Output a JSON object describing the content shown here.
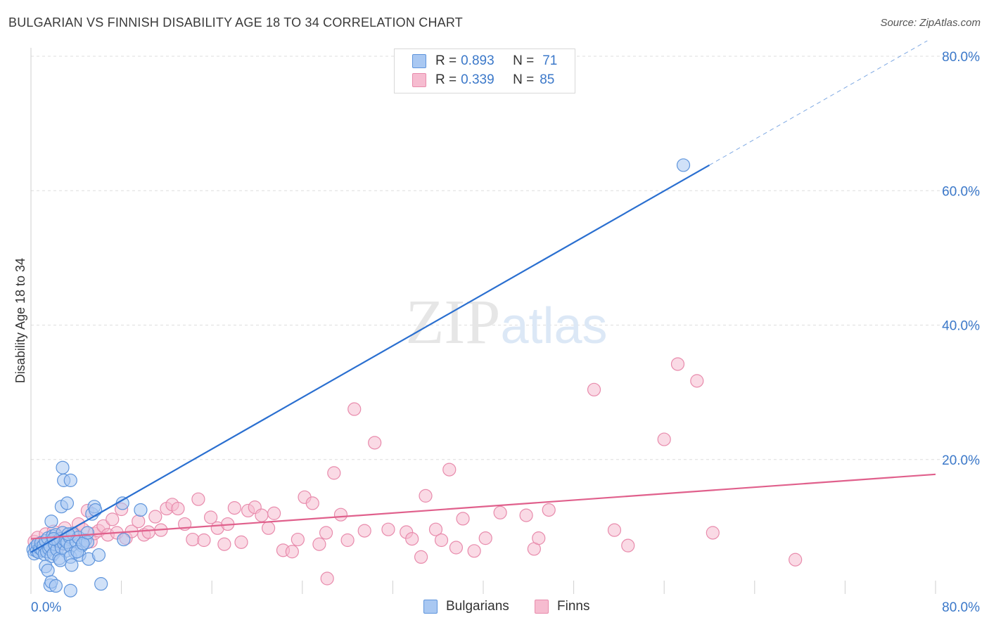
{
  "title": "BULGARIAN VS FINNISH DISABILITY AGE 18 TO 34 CORRELATION CHART",
  "source": "Source: ZipAtlas.com",
  "watermark": "ZIPatlas",
  "colors": {
    "bulgarians_fill": "#a9c8f2",
    "bulgarians_stroke": "#5f95dc",
    "bulgarians_line": "#2a6fd0",
    "finns_fill": "#f6bcd0",
    "finns_stroke": "#e88bac",
    "finns_line": "#e0608c",
    "tick_text": "#3b78c9",
    "grid": "#dedede"
  },
  "legend_top": {
    "bulgarians": {
      "r_label": "R = ",
      "r_value": "0.893",
      "n_label": "N = ",
      "n_value": "71"
    },
    "finns": {
      "r_label": "R = ",
      "r_value": "0.339",
      "n_label": "N = ",
      "n_value": "85"
    }
  },
  "legend_bottom": {
    "bulgarians": "Bulgarians",
    "finns": "Finns"
  },
  "chart_data": {
    "type": "scatter",
    "title": "BULGARIAN VS FINNISH DISABILITY AGE 18 TO 34 CORRELATION CHART",
    "xlabel": "",
    "ylabel": "Disability Age 18 to 34",
    "xlim": [
      0,
      80
    ],
    "ylim": [
      0,
      80
    ],
    "x_tick_labels": [
      "0.0%",
      "80.0%"
    ],
    "y_tick_labels": [
      "20.0%",
      "40.0%",
      "60.0%",
      "80.0%"
    ],
    "y_ticks": [
      20,
      40,
      60,
      80
    ],
    "grid": true,
    "legend_position": "top-center",
    "series": [
      {
        "name": "Bulgarians",
        "r": 0.893,
        "n": 71,
        "trend": {
          "x": [
            0,
            60
          ],
          "y": [
            6.2,
            63.8
          ],
          "dashed_to": [
            80,
            82.3
          ]
        },
        "points": [
          [
            0.2,
            6.6
          ],
          [
            0.3,
            6.0
          ],
          [
            0.4,
            7.0
          ],
          [
            0.5,
            6.4
          ],
          [
            0.6,
            7.4
          ],
          [
            0.7,
            6.2
          ],
          [
            0.8,
            6.8
          ],
          [
            0.9,
            7.6
          ],
          [
            1.0,
            6.5
          ],
          [
            1.1,
            7.2
          ],
          [
            1.2,
            5.9
          ],
          [
            1.3,
            7.9
          ],
          [
            1.4,
            6.3
          ],
          [
            1.5,
            8.3
          ],
          [
            1.6,
            6.7
          ],
          [
            1.7,
            7.1
          ],
          [
            1.8,
            5.6
          ],
          [
            1.9,
            8.6
          ],
          [
            2.0,
            6.0
          ],
          [
            2.1,
            7.4
          ],
          [
            2.2,
            8.8
          ],
          [
            2.3,
            6.6
          ],
          [
            2.4,
            7.9
          ],
          [
            2.5,
            5.3
          ],
          [
            2.6,
            8.2
          ],
          [
            2.7,
            6.9
          ],
          [
            2.8,
            9.1
          ],
          [
            2.9,
            7.5
          ],
          [
            3.0,
            8.0
          ],
          [
            3.1,
            6.4
          ],
          [
            3.2,
            7.7
          ],
          [
            3.4,
            8.5
          ],
          [
            3.5,
            7.1
          ],
          [
            3.7,
            9.0
          ],
          [
            3.9,
            6.2
          ],
          [
            4.0,
            7.8
          ],
          [
            4.2,
            8.4
          ],
          [
            4.5,
            7.2
          ],
          [
            4.8,
            8.0
          ],
          [
            1.3,
            4.1
          ],
          [
            1.5,
            3.5
          ],
          [
            1.7,
            1.3
          ],
          [
            1.8,
            1.8
          ],
          [
            2.2,
            1.2
          ],
          [
            2.6,
            5.0
          ],
          [
            3.5,
            5.5
          ],
          [
            3.6,
            4.3
          ],
          [
            4.3,
            5.8
          ],
          [
            5.0,
            7.7
          ],
          [
            5.1,
            5.2
          ],
          [
            5.4,
            11.9
          ],
          [
            5.6,
            13.0
          ],
          [
            5.7,
            12.5
          ],
          [
            1.8,
            10.8
          ],
          [
            2.7,
            13.0
          ],
          [
            3.2,
            13.5
          ],
          [
            2.8,
            18.8
          ],
          [
            2.9,
            16.9
          ],
          [
            3.5,
            16.9
          ],
          [
            8.1,
            13.5
          ],
          [
            9.7,
            12.5
          ],
          [
            8.2,
            8.1
          ],
          [
            6.0,
            5.8
          ],
          [
            6.2,
            1.5
          ],
          [
            3.5,
            0.5
          ],
          [
            4.1,
            6.3
          ],
          [
            4.6,
            7.5
          ],
          [
            5.0,
            9.1
          ],
          [
            2.0,
            8.2
          ],
          [
            3.3,
            8.9
          ],
          [
            57.7,
            63.8
          ]
        ]
      },
      {
        "name": "Finns",
        "r": 0.339,
        "n": 85,
        "trend": {
          "x": [
            0,
            80
          ],
          "y": [
            8.2,
            17.8
          ]
        },
        "points": [
          [
            0.3,
            7.8
          ],
          [
            0.6,
            8.4
          ],
          [
            1.0,
            7.2
          ],
          [
            1.3,
            8.9
          ],
          [
            1.6,
            7.6
          ],
          [
            2.0,
            9.3
          ],
          [
            2.4,
            8.1
          ],
          [
            2.8,
            7.4
          ],
          [
            3.0,
            9.8
          ],
          [
            3.4,
            8.6
          ],
          [
            3.9,
            8.9
          ],
          [
            4.2,
            10.4
          ],
          [
            4.6,
            9.6
          ],
          [
            5.0,
            12.4
          ],
          [
            5.3,
            7.8
          ],
          [
            5.6,
            9.0
          ],
          [
            6.0,
            9.4
          ],
          [
            6.4,
            10.1
          ],
          [
            6.8,
            8.8
          ],
          [
            7.2,
            11.1
          ],
          [
            7.6,
            9.1
          ],
          [
            8.0,
            12.6
          ],
          [
            8.4,
            8.3
          ],
          [
            8.9,
            9.3
          ],
          [
            9.5,
            10.8
          ],
          [
            10.0,
            8.8
          ],
          [
            10.4,
            9.2
          ],
          [
            11.0,
            11.5
          ],
          [
            11.5,
            9.5
          ],
          [
            12.0,
            12.7
          ],
          [
            12.5,
            13.3
          ],
          [
            13.0,
            12.7
          ],
          [
            13.6,
            10.4
          ],
          [
            14.3,
            8.1
          ],
          [
            14.8,
            14.1
          ],
          [
            15.3,
            8.0
          ],
          [
            15.9,
            11.4
          ],
          [
            16.5,
            9.8
          ],
          [
            17.1,
            7.4
          ],
          [
            17.4,
            10.4
          ],
          [
            18.0,
            12.8
          ],
          [
            18.6,
            7.7
          ],
          [
            19.2,
            12.4
          ],
          [
            19.8,
            12.9
          ],
          [
            20.4,
            11.7
          ],
          [
            21.0,
            9.8
          ],
          [
            21.5,
            12.0
          ],
          [
            22.3,
            6.5
          ],
          [
            23.1,
            6.3
          ],
          [
            23.6,
            8.1
          ],
          [
            24.2,
            14.4
          ],
          [
            24.9,
            13.5
          ],
          [
            25.5,
            7.4
          ],
          [
            26.1,
            9.1
          ],
          [
            26.8,
            18.0
          ],
          [
            27.4,
            11.8
          ],
          [
            28.0,
            8.0
          ],
          [
            28.6,
            27.5
          ],
          [
            29.5,
            9.4
          ],
          [
            30.4,
            22.5
          ],
          [
            31.6,
            9.6
          ],
          [
            33.2,
            9.2
          ],
          [
            33.7,
            8.2
          ],
          [
            34.5,
            5.5
          ],
          [
            34.9,
            14.6
          ],
          [
            35.8,
            9.6
          ],
          [
            36.3,
            8.0
          ],
          [
            37.0,
            18.5
          ],
          [
            37.6,
            6.9
          ],
          [
            38.2,
            11.2
          ],
          [
            39.2,
            6.4
          ],
          [
            40.2,
            8.3
          ],
          [
            41.5,
            12.1
          ],
          [
            43.8,
            11.7
          ],
          [
            44.5,
            6.7
          ],
          [
            44.9,
            8.3
          ],
          [
            45.8,
            12.5
          ],
          [
            49.8,
            30.4
          ],
          [
            51.6,
            9.5
          ],
          [
            52.8,
            7.2
          ],
          [
            56.0,
            23.0
          ],
          [
            57.2,
            34.2
          ],
          [
            58.9,
            31.7
          ],
          [
            60.3,
            9.1
          ],
          [
            67.6,
            5.1
          ],
          [
            26.2,
            2.3
          ]
        ]
      }
    ]
  }
}
